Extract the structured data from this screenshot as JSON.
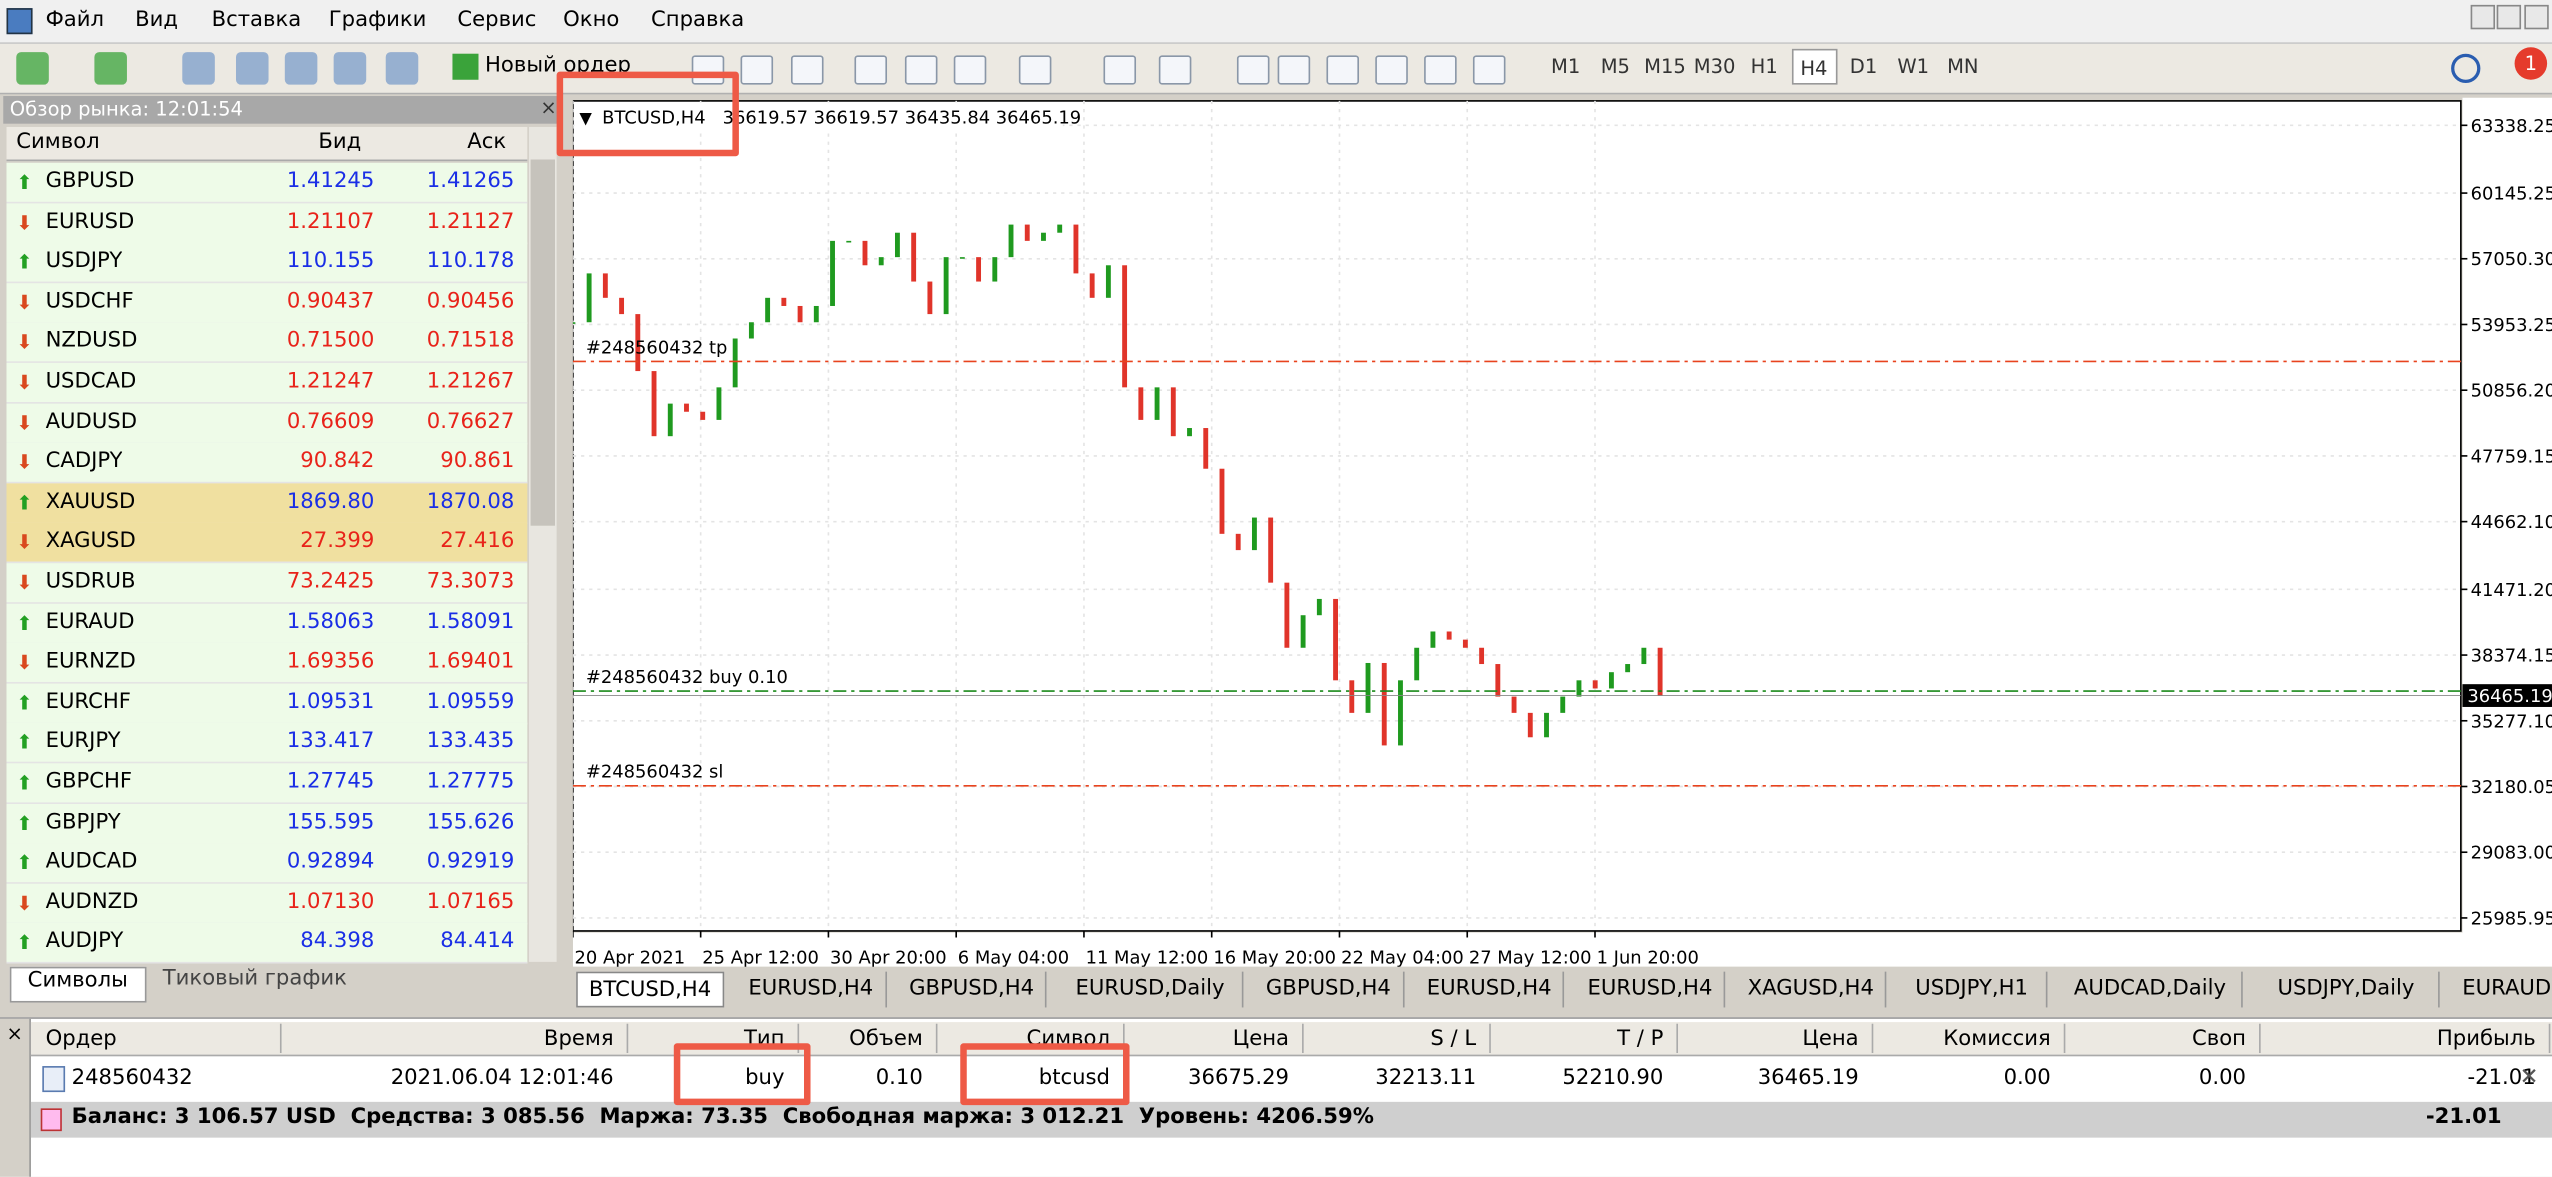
{
  "menu": [
    "Файл",
    "Вид",
    "Вставка",
    "Графики",
    "Сервис",
    "Окно",
    "Справка"
  ],
  "toolbar": {
    "new_order": "Новый ордер",
    "timeframes": [
      "M1",
      "M5",
      "M15",
      "M30",
      "H1",
      "H4",
      "D1",
      "W1",
      "MN"
    ],
    "active_timeframe": "H4",
    "notifications": "1"
  },
  "market_watch": {
    "title": "Обзор рынка: 12:01:54",
    "columns": [
      "Символ",
      "Бид",
      "Аск"
    ],
    "rows": [
      {
        "symbol": "GBPUSD",
        "bid": "1.41245",
        "ask": "1.41265",
        "direction": "up"
      },
      {
        "symbol": "EURUSD",
        "bid": "1.21107",
        "ask": "1.21127",
        "direction": "down"
      },
      {
        "symbol": "USDJPY",
        "bid": "110.155",
        "ask": "110.178",
        "direction": "up"
      },
      {
        "symbol": "USDCHF",
        "bid": "0.90437",
        "ask": "0.90456",
        "direction": "down"
      },
      {
        "symbol": "NZDUSD",
        "bid": "0.71500",
        "ask": "0.71518",
        "direction": "down"
      },
      {
        "symbol": "USDCAD",
        "bid": "1.21247",
        "ask": "1.21267",
        "direction": "down"
      },
      {
        "symbol": "AUDUSD",
        "bid": "0.76609",
        "ask": "0.76627",
        "direction": "down"
      },
      {
        "symbol": "CADJPY",
        "bid": "90.842",
        "ask": "90.861",
        "direction": "down"
      },
      {
        "symbol": "XAUUSD",
        "bid": "1869.80",
        "ask": "1870.08",
        "direction": "up",
        "highlight": true
      },
      {
        "symbol": "XAGUSD",
        "bid": "27.399",
        "ask": "27.416",
        "direction": "down",
        "highlight": true
      },
      {
        "symbol": "USDRUB",
        "bid": "73.2425",
        "ask": "73.3073",
        "direction": "down"
      },
      {
        "symbol": "EURAUD",
        "bid": "1.58063",
        "ask": "1.58091",
        "direction": "up"
      },
      {
        "symbol": "EURNZD",
        "bid": "1.69356",
        "ask": "1.69401",
        "direction": "down"
      },
      {
        "symbol": "EURCHF",
        "bid": "1.09531",
        "ask": "1.09559",
        "direction": "up"
      },
      {
        "symbol": "EURJPY",
        "bid": "133.417",
        "ask": "133.435",
        "direction": "up"
      },
      {
        "symbol": "GBPCHF",
        "bid": "1.27745",
        "ask": "1.27775",
        "direction": "up"
      },
      {
        "symbol": "GBPJPY",
        "bid": "155.595",
        "ask": "155.626",
        "direction": "up"
      },
      {
        "symbol": "AUDCAD",
        "bid": "0.92894",
        "ask": "0.92919",
        "direction": "up"
      },
      {
        "symbol": "AUDNZD",
        "bid": "1.07130",
        "ask": "1.07165",
        "direction": "down"
      },
      {
        "symbol": "AUDJPY",
        "bid": "84.398",
        "ask": "84.414",
        "direction": "up"
      }
    ],
    "tabs": [
      "Символы",
      "Тиковый график"
    ]
  },
  "chart": {
    "header": "BTCUSD,H4",
    "ohlc": "36619.57 36619.57 36435.84 36465.19",
    "price_ticks": [
      63338.25,
      60145.25,
      {
        "value": 57050.3,
        "label": "57050.30"
      },
      53953.25,
      {
        "value": 50856.2,
        "label": "50856.20"
      },
      47759.15,
      {
        "value": 44662.1,
        "label": "44662.10"
      },
      {
        "value": 41471.2,
        "label": "41471.20"
      },
      38374.15,
      {
        "value": 35277.1,
        "label": "35277.10"
      },
      32180.05,
      {
        "value": 29083,
        "label": "29083.00"
      },
      25985.95
    ],
    "bid": 36465.19,
    "time_ticks": [
      "20 Apr 2021",
      "25 Apr 12:00",
      "30 Apr 20:00",
      "6 May 04:00",
      "11 May 12:00",
      "16 May 20:00",
      "22 May 04:00",
      "27 May 12:00",
      "1 Jun 20:00"
    ],
    "closes": [
      54058,
      56360,
      55209,
      54442,
      51757,
      48689,
      50223,
      49840,
      49456,
      50990,
      53292,
      54058,
      55209,
      54825,
      54058,
      54825,
      57893,
      57893,
      56743,
      57126,
      58277,
      55976,
      54442,
      57126,
      57126,
      55976,
      57126,
      58660,
      57893,
      58277,
      58660,
      56360,
      55209,
      56743,
      50990,
      49456,
      50990,
      48689,
      49073,
      47155,
      44087,
      43320,
      44854,
      41786,
      38718,
      40252,
      41019,
      37184,
      35650,
      38001,
      34116,
      37184,
      38718,
      39485,
      39101,
      38718,
      37951,
      36417,
      35650,
      34500,
      35650,
      36417,
      37184,
      36800,
      37567,
      37951,
      38718,
      36465.19
    ],
    "order_lines": {
      "tp": "#248560432 tp",
      "open": "#248560432 buy 0.10",
      "sl": "#248560432 sl"
    },
    "up_color": "#1f9a1f",
    "down_color": "#e0342a"
  },
  "chart_tabs": [
    "BTCUSD,H4",
    "EURUSD,H4",
    "GBPUSD,H4",
    "EURUSD,Daily",
    "GBPUSD,H4",
    "EURUSD,H4",
    "EURUSD,H4",
    "XAGUSD,H4",
    "USDJPY,H1",
    "AUDCAD,Daily",
    "USDJPY,Daily",
    "EURAUD"
  ],
  "terminal": {
    "columns": [
      "Ордер",
      "Время",
      "Тип",
      "Объем",
      "Символ",
      "Цена",
      "S / L",
      "T / P",
      "Цена",
      "Комиссия",
      "Своп",
      "Прибыль"
    ],
    "order": [
      "248560432",
      "2021.06.04 12:01:46",
      "buy",
      "0.10",
      "btcusd",
      "36675.29",
      "32213.11",
      "52210.90",
      "36465.19",
      "0.00",
      "0.00",
      "-21.01"
    ],
    "summary": "Баланс: 3 106.57 USD  Средства: 3 085.56  Маржа: 73.35  Свободная маржа: 3 012.21  Уровень: 4206.59%",
    "summary_profit": "-21.01"
  }
}
